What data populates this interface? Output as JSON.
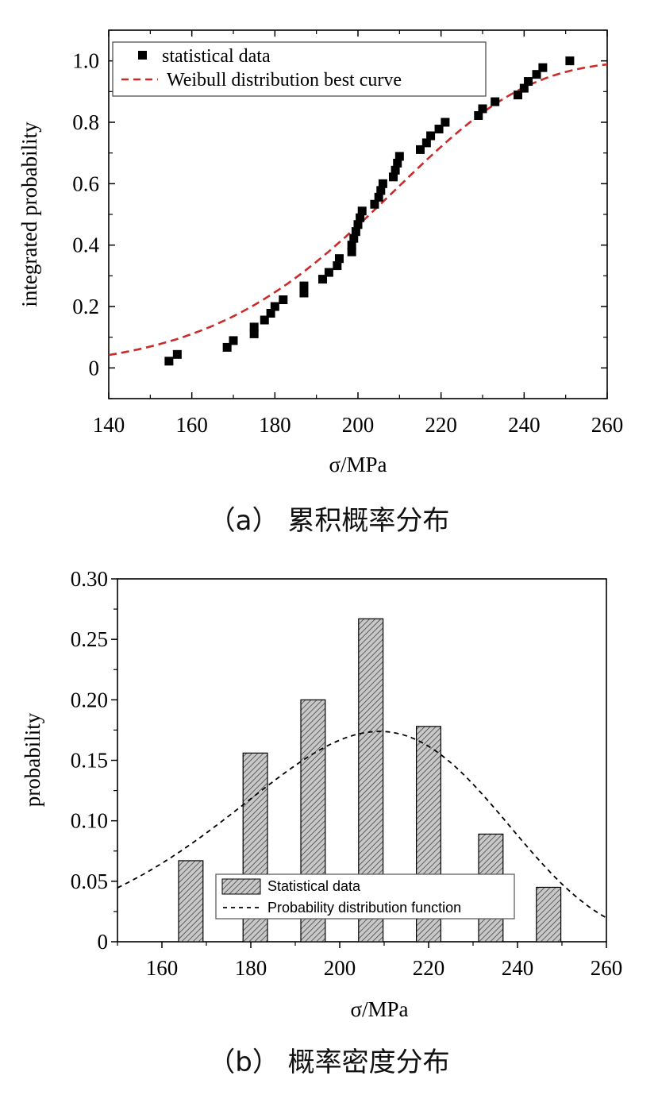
{
  "chart_data": [
    {
      "type": "scatter",
      "caption": "（a） 累积概率分布",
      "xlabel": "σ/MPa",
      "ylabel": "integrated probability",
      "xlim": [
        140,
        260
      ],
      "ylim": [
        -0.1,
        1.1
      ],
      "xticks": [
        "140",
        "160",
        "180",
        "200",
        "220",
        "240",
        "260"
      ],
      "yticks": [
        "0",
        "0.2",
        "0.4",
        "0.6",
        "0.8",
        "1.0"
      ],
      "legend_position": "top-left",
      "series": [
        {
          "name": "statistical data",
          "marker": "square",
          "color": "#000000",
          "points": [
            [
              154.5,
              0.022
            ],
            [
              156.5,
              0.044
            ],
            [
              168.5,
              0.067
            ],
            [
              170,
              0.089
            ],
            [
              175,
              0.111
            ],
            [
              175,
              0.133
            ],
            [
              177.5,
              0.156
            ],
            [
              179,
              0.178
            ],
            [
              180,
              0.2
            ],
            [
              182,
              0.222
            ],
            [
              187,
              0.244
            ],
            [
              187,
              0.267
            ],
            [
              191.5,
              0.289
            ],
            [
              193,
              0.311
            ],
            [
              195,
              0.333
            ],
            [
              195.5,
              0.356
            ],
            [
              198.5,
              0.378
            ],
            [
              198.5,
              0.4
            ],
            [
              199,
              0.422
            ],
            [
              199.5,
              0.444
            ],
            [
              200,
              0.467
            ],
            [
              200.5,
              0.489
            ],
            [
              201,
              0.511
            ],
            [
              204,
              0.533
            ],
            [
              205,
              0.556
            ],
            [
              205.5,
              0.578
            ],
            [
              206,
              0.6
            ],
            [
              208.5,
              0.622
            ],
            [
              209,
              0.644
            ],
            [
              209.5,
              0.667
            ],
            [
              210,
              0.689
            ],
            [
              215,
              0.711
            ],
            [
              216.5,
              0.733
            ],
            [
              217.5,
              0.756
            ],
            [
              219.5,
              0.778
            ],
            [
              221,
              0.8
            ],
            [
              229,
              0.822
            ],
            [
              230,
              0.844
            ],
            [
              233,
              0.867
            ],
            [
              238.5,
              0.889
            ],
            [
              240,
              0.911
            ],
            [
              241,
              0.933
            ],
            [
              243,
              0.956
            ],
            [
              244.5,
              0.978
            ],
            [
              251,
              1.0
            ]
          ]
        },
        {
          "name": "Weibull distribution best curve",
          "style": "dashed-line",
          "color": "#cc2a2a",
          "weibull": {
            "shape": 7.5,
            "scale": 213
          }
        }
      ]
    },
    {
      "type": "bar",
      "caption": "（b） 概率密度分布",
      "xlabel": "σ/MPa",
      "ylabel": "probability",
      "xlim": [
        150,
        260
      ],
      "ylim": [
        0,
        0.3
      ],
      "xticks": [
        "160",
        "180",
        "200",
        "220",
        "240",
        "260"
      ],
      "yticks": [
        "0",
        "0.05",
        "0.10",
        "0.15",
        "0.20",
        "0.25",
        "0.30"
      ],
      "legend_position": "bottom-right",
      "bar_width": 5.5,
      "series": [
        {
          "name": "Statistical data",
          "fill": "hatched-gray",
          "x": [
            166.5,
            181,
            194,
            207,
            220,
            234,
            247
          ],
          "values": [
            0.067,
            0.156,
            0.2,
            0.267,
            0.178,
            0.089,
            0.045
          ]
        },
        {
          "name": "Probability distribution function",
          "style": "dashed-line",
          "color": "#000000",
          "weibull_pdf": {
            "shape": 7.5,
            "scale": 213,
            "bin_width": 13.3
          }
        }
      ]
    }
  ]
}
